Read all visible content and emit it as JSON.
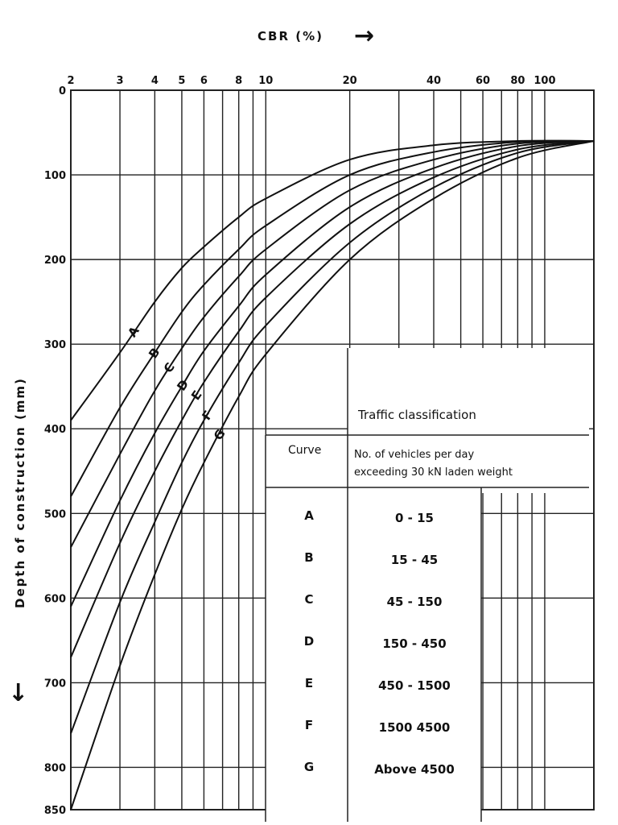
{
  "chart_data": {
    "type": "line",
    "x_axis": {
      "label": "CBR (%)",
      "arrow": "→",
      "scale": "log",
      "range": [
        2,
        150
      ],
      "position": "top",
      "ticks": [
        2,
        3,
        4,
        5,
        6,
        8,
        10,
        20,
        40,
        60,
        80,
        100
      ],
      "gridlines": [
        2,
        3,
        4,
        5,
        6,
        7,
        8,
        9,
        10,
        20,
        30,
        40,
        50,
        60,
        70,
        80,
        90,
        100
      ]
    },
    "y_axis": {
      "label": "Depth of construction (mm)",
      "arrow": "↓",
      "range": [
        0,
        850
      ],
      "inverted": true,
      "ticks": [
        0,
        100,
        200,
        300,
        400,
        500,
        600,
        700,
        800,
        850
      ]
    },
    "grid": true,
    "series": [
      {
        "name": "A",
        "points": [
          [
            2,
            390
          ],
          [
            3,
            310
          ],
          [
            4,
            250
          ],
          [
            5,
            210
          ],
          [
            6,
            185
          ],
          [
            8,
            150
          ],
          [
            10,
            128
          ],
          [
            20,
            82
          ],
          [
            40,
            65
          ],
          [
            80,
            60
          ],
          [
            150,
            60
          ]
        ]
      },
      {
        "name": "B",
        "points": [
          [
            2,
            480
          ],
          [
            3,
            375
          ],
          [
            4,
            310
          ],
          [
            5,
            262
          ],
          [
            6,
            230
          ],
          [
            8,
            188
          ],
          [
            10,
            160
          ],
          [
            20,
            100
          ],
          [
            40,
            73
          ],
          [
            80,
            61
          ],
          [
            150,
            60
          ]
        ]
      },
      {
        "name": "C",
        "points": [
          [
            2,
            540
          ],
          [
            3,
            430
          ],
          [
            4,
            355
          ],
          [
            5,
            305
          ],
          [
            6,
            268
          ],
          [
            8,
            220
          ],
          [
            10,
            188
          ],
          [
            20,
            118
          ],
          [
            40,
            82
          ],
          [
            80,
            63
          ],
          [
            150,
            60
          ]
        ]
      },
      {
        "name": "D",
        "points": [
          [
            2,
            610
          ],
          [
            3,
            485
          ],
          [
            4,
            405
          ],
          [
            5,
            350
          ],
          [
            6,
            308
          ],
          [
            8,
            255
          ],
          [
            10,
            218
          ],
          [
            20,
            138
          ],
          [
            40,
            92
          ],
          [
            80,
            66
          ],
          [
            150,
            60
          ]
        ]
      },
      {
        "name": "E",
        "points": [
          [
            2,
            670
          ],
          [
            3,
            535
          ],
          [
            4,
            450
          ],
          [
            5,
            390
          ],
          [
            6,
            345
          ],
          [
            8,
            285
          ],
          [
            10,
            245
          ],
          [
            20,
            158
          ],
          [
            40,
            103
          ],
          [
            80,
            70
          ],
          [
            150,
            60
          ]
        ]
      },
      {
        "name": "F",
        "points": [
          [
            2,
            760
          ],
          [
            3,
            605
          ],
          [
            4,
            510
          ],
          [
            5,
            440
          ],
          [
            6,
            390
          ],
          [
            8,
            322
          ],
          [
            10,
            278
          ],
          [
            20,
            180
          ],
          [
            40,
            115
          ],
          [
            80,
            74
          ],
          [
            150,
            60
          ]
        ]
      },
      {
        "name": "G",
        "points": [
          [
            2,
            850
          ],
          [
            3,
            680
          ],
          [
            4,
            572
          ],
          [
            5,
            495
          ],
          [
            6,
            440
          ],
          [
            8,
            362
          ],
          [
            10,
            312
          ],
          [
            20,
            200
          ],
          [
            40,
            128
          ],
          [
            80,
            80
          ],
          [
            150,
            60
          ]
        ]
      }
    ],
    "curve_labels": [
      "A",
      "B",
      "C",
      "D",
      "E",
      "F",
      "G"
    ]
  },
  "traffic_table": {
    "title": "Traffic classification",
    "curve_header": "Curve",
    "vehicles_header_line1": "No. of vehicles per day",
    "vehicles_header_line2": "exceeding 30 kN laden weight",
    "rows": [
      {
        "curve": "A",
        "vehicles": "0 - 15"
      },
      {
        "curve": "B",
        "vehicles": "15 - 45"
      },
      {
        "curve": "C",
        "vehicles": "45 - 150"
      },
      {
        "curve": "D",
        "vehicles": "150 - 450"
      },
      {
        "curve": "E",
        "vehicles": "450 - 1500"
      },
      {
        "curve": "F",
        "vehicles": "1500 4500"
      },
      {
        "curve": "G",
        "vehicles": "Above 4500"
      }
    ]
  }
}
